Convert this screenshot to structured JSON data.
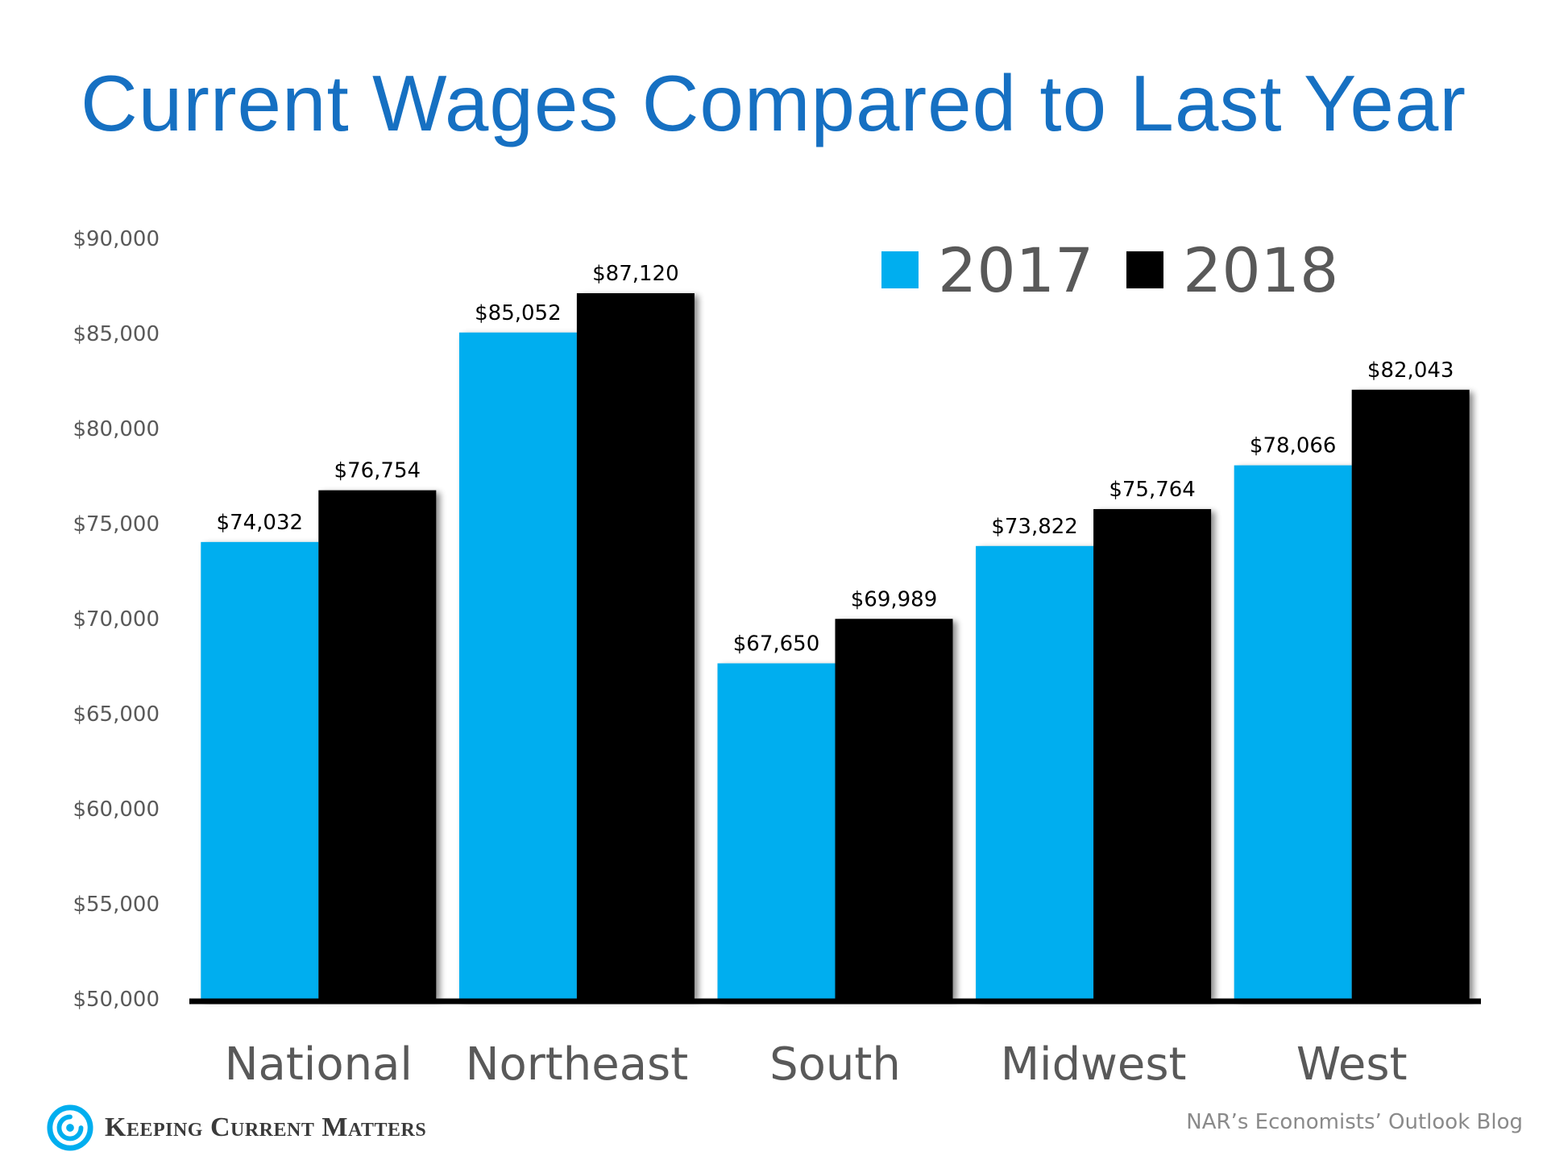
{
  "chart_data": {
    "type": "bar",
    "title": "Current Wages Compared to Last Year",
    "categories": [
      "National",
      "Northeast",
      "South",
      "Midwest",
      "West"
    ],
    "series": [
      {
        "name": "2017",
        "color": "#00aeef",
        "values": [
          74032,
          85052,
          67650,
          73822,
          78066
        ],
        "labels": [
          "$74,032",
          "$85,052",
          "$67,650",
          "$73,822",
          "$78,066"
        ]
      },
      {
        "name": "2018",
        "color": "#000000",
        "values": [
          76754,
          87120,
          69989,
          75764,
          82043
        ],
        "labels": [
          "$76,754",
          "$87,120",
          "$69,989",
          "$75,764",
          "$82,043"
        ]
      }
    ],
    "ylim": [
      50000,
      90000
    ],
    "yticks": [
      50000,
      55000,
      60000,
      65000,
      70000,
      75000,
      80000,
      85000,
      90000
    ],
    "ytick_labels": [
      "$50,000",
      "$55,000",
      "$60,000",
      "$65,000",
      "$70,000",
      "$75,000",
      "$80,000",
      "$85,000",
      "$90,000"
    ],
    "grid": false,
    "legend_position": "top-right",
    "xlabel": "",
    "ylabel": ""
  },
  "branding": {
    "name": "Keeping Current Matters",
    "logo_icon": "spiral-logo-icon",
    "logo_color": "#00aeef"
  },
  "source": "NAR’s Economists’ Outlook Blog",
  "colors": {
    "title": "#1670c2",
    "axis_text": "#595959"
  }
}
